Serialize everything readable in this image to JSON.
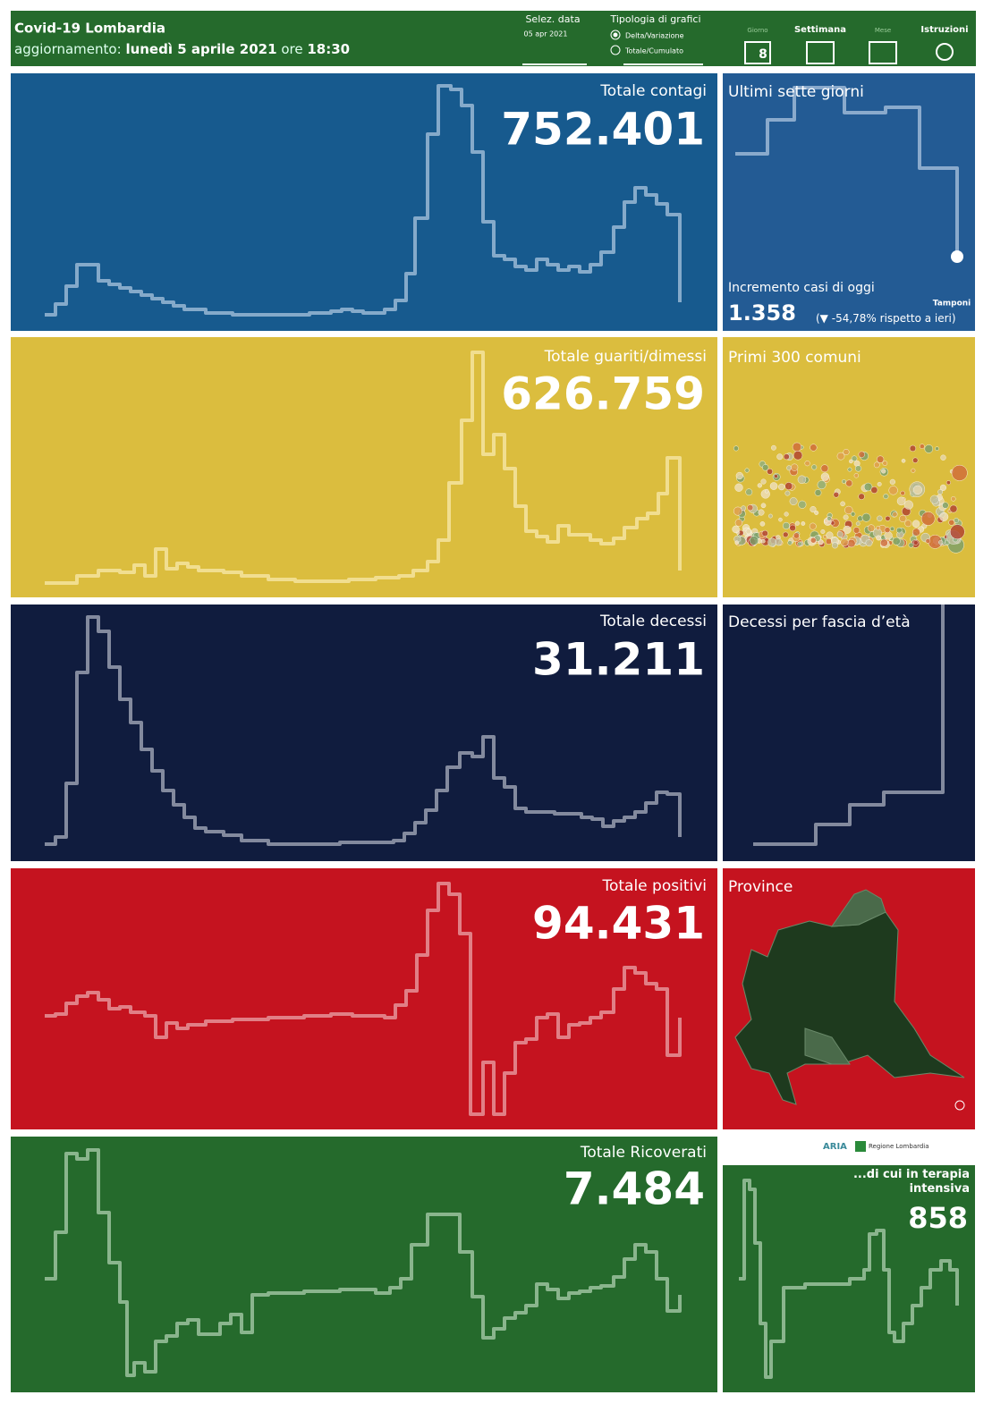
{
  "header": {
    "title": "Covid-19 Lombardia",
    "update_label": "aggiornamento:",
    "update_date": "lunedì 5 aprile 2021",
    "time_label": "ore",
    "update_time": "18:30",
    "date_select_label": "Selez. data",
    "date_select_value": "05 apr 2021",
    "chart_type_label": "Tipologia di grafici",
    "chart_type_options": [
      "Delta/Variazione",
      "Totale/Cumulato"
    ],
    "period_buttons": [
      {
        "label": "Giorno",
        "icon_text": "8"
      },
      {
        "label": "Settimana"
      },
      {
        "label": "Mese"
      }
    ],
    "instructions": "Istruzioni"
  },
  "panels": [
    {
      "title": "Totale contagi",
      "value": "752.401",
      "side_title": "Ultimi sette giorni",
      "today_label": "Incremento casi di oggi",
      "today_value": "1.358",
      "today_arrow": "(▼",
      "today_change": "-54,78% rispetto a  ieri)",
      "tests_label": "Tamponi"
    },
    {
      "title": "Totale guariti/dimessi",
      "value": "626.759",
      "side_title": "Primi 300 comuni"
    },
    {
      "title": "Totale decessi",
      "value": "31.211",
      "side_title": "Decessi per fascia d’età"
    },
    {
      "title": "Totale positivi",
      "value": "94.431",
      "side_title": "Province"
    },
    {
      "title": "Totale Ricoverati",
      "value": "7.484",
      "side_title": "...di cui in terapia intensiva",
      "side_value": "858",
      "logos": [
        "ARIA",
        "Regione Lombardia"
      ]
    }
  ]
}
